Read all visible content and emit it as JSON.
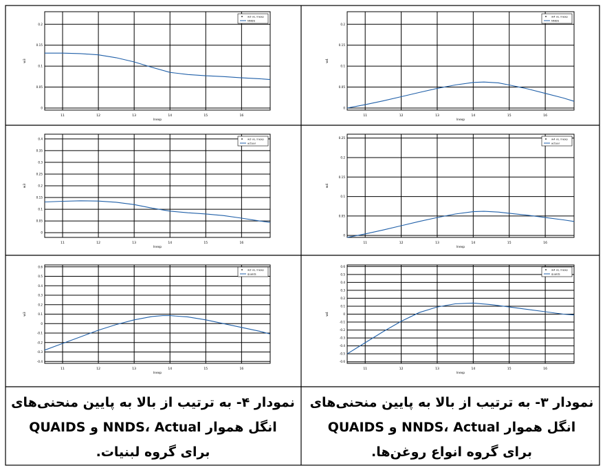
{
  "chart_data": [
    {
      "type": "line",
      "legend_entries": [
        "w3 vs. lnexp",
        "NNDS"
      ],
      "legend_position": "top-right",
      "xlabel": "lnexp",
      "ylabel": "w3",
      "xlim": [
        10.5,
        16.8
      ],
      "ylim": [
        -0.005,
        0.23
      ],
      "xticks": [
        11,
        12,
        13,
        14,
        15,
        16
      ],
      "yticks": [
        0,
        0.05,
        0.1,
        0.15,
        0.2
      ],
      "ytick_labels": [
        "0",
        "0.05",
        "0.1",
        "0.15",
        "0.2"
      ],
      "grid": true,
      "series": [
        {
          "name": "NNDS",
          "x": [
            10.5,
            11.0,
            11.5,
            12.0,
            12.5,
            13.0,
            13.5,
            14.0,
            14.5,
            15.0,
            15.5,
            16.0,
            16.5,
            16.8
          ],
          "y": [
            0.131,
            0.131,
            0.13,
            0.127,
            0.12,
            0.11,
            0.097,
            0.085,
            0.08,
            0.077,
            0.075,
            0.072,
            0.07,
            0.068
          ]
        }
      ]
    },
    {
      "type": "line",
      "legend_entries": [
        "w4 vs. lnexp",
        "NNDS"
      ],
      "legend_position": "top-right",
      "xlabel": "lnexp",
      "ylabel": "w4",
      "xlim": [
        10.5,
        16.8
      ],
      "ylim": [
        -0.005,
        0.23
      ],
      "xticks": [
        11,
        12,
        13,
        14,
        15,
        16
      ],
      "yticks": [
        0,
        0.05,
        0.1,
        0.15,
        0.2
      ],
      "ytick_labels": [
        "0",
        "0.05",
        "0.1",
        "0.15",
        "0.2"
      ],
      "grid": true,
      "series": [
        {
          "name": "NNDS",
          "x": [
            10.5,
            11.0,
            11.5,
            12.0,
            12.5,
            13.0,
            13.5,
            14.0,
            14.3,
            14.7,
            15.0,
            15.5,
            16.0,
            16.5,
            16.8
          ],
          "y": [
            0.0,
            0.008,
            0.017,
            0.027,
            0.037,
            0.047,
            0.055,
            0.061,
            0.062,
            0.06,
            0.055,
            0.046,
            0.035,
            0.024,
            0.016
          ]
        }
      ]
    },
    {
      "type": "line",
      "legend_entries": [
        "w3 vs. lnexp",
        "actual"
      ],
      "legend_position": "top-right",
      "xlabel": "lnexp",
      "ylabel": "w3",
      "xlim": [
        10.5,
        16.8
      ],
      "ylim": [
        -0.02,
        0.42
      ],
      "xticks": [
        11,
        12,
        13,
        14,
        15,
        16
      ],
      "yticks": [
        0,
        0.05,
        0.1,
        0.15,
        0.2,
        0.25,
        0.3,
        0.35,
        0.4
      ],
      "ytick_labels": [
        "0",
        "0.05",
        "0.1",
        "0.15",
        "0.2",
        "0.25",
        "0.3",
        "0.35",
        "0.4"
      ],
      "grid": true,
      "series": [
        {
          "name": "actual",
          "x": [
            10.5,
            11.0,
            11.5,
            12.0,
            12.5,
            13.0,
            13.5,
            14.0,
            14.5,
            15.0,
            15.5,
            16.0,
            16.5,
            16.8
          ],
          "y": [
            0.131,
            0.134,
            0.136,
            0.135,
            0.13,
            0.12,
            0.105,
            0.092,
            0.085,
            0.08,
            0.073,
            0.062,
            0.05,
            0.044
          ]
        }
      ]
    },
    {
      "type": "line",
      "legend_entries": [
        "w4 vs. lnexp",
        "actual"
      ],
      "legend_position": "top-right",
      "xlabel": "lnexp",
      "ylabel": "w4",
      "xlim": [
        10.5,
        16.8
      ],
      "ylim": [
        -0.005,
        0.26
      ],
      "xticks": [
        11,
        12,
        13,
        14,
        15,
        16
      ],
      "yticks": [
        0,
        0.05,
        0.1,
        0.15,
        0.2,
        0.25
      ],
      "ytick_labels": [
        "0",
        "0.05",
        "0.1",
        "0.15",
        "0.2",
        "0.25"
      ],
      "grid": true,
      "series": [
        {
          "name": "actual",
          "x": [
            10.5,
            11.0,
            11.5,
            12.0,
            12.5,
            13.0,
            13.5,
            14.0,
            14.3,
            14.7,
            15.0,
            15.5,
            16.0,
            16.5,
            16.8
          ],
          "y": [
            -0.005,
            0.004,
            0.014,
            0.025,
            0.036,
            0.046,
            0.055,
            0.061,
            0.062,
            0.06,
            0.057,
            0.052,
            0.046,
            0.04,
            0.036
          ]
        }
      ]
    },
    {
      "type": "line",
      "legend_entries": [
        "w3 vs. lnexp",
        "quaids"
      ],
      "legend_position": "top-right",
      "xlabel": "lnexp",
      "ylabel": "w3",
      "xlim": [
        10.5,
        16.8
      ],
      "ylim": [
        -0.42,
        0.62
      ],
      "xticks": [
        11,
        12,
        13,
        14,
        15,
        16
      ],
      "yticks": [
        -0.4,
        -0.3,
        -0.2,
        -0.1,
        0,
        0.1,
        0.2,
        0.3,
        0.4,
        0.5,
        0.6
      ],
      "ytick_labels": [
        "-0.4",
        "-0.3",
        "-0.2",
        "-0.1",
        "0",
        "0.1",
        "0.2",
        "0.3",
        "0.4",
        "0.5",
        "0.6"
      ],
      "grid": true,
      "series": [
        {
          "name": "quaids",
          "x": [
            10.5,
            11.0,
            11.5,
            12.0,
            12.5,
            13.0,
            13.5,
            13.8,
            14.0,
            14.5,
            15.0,
            15.5,
            16.0,
            16.5,
            16.8
          ],
          "y": [
            -0.28,
            -0.21,
            -0.14,
            -0.07,
            -0.01,
            0.04,
            0.075,
            0.085,
            0.085,
            0.07,
            0.04,
            0.0,
            -0.04,
            -0.08,
            -0.11
          ]
        }
      ]
    },
    {
      "type": "line",
      "legend_entries": [
        "w4 vs. lnexp",
        "quaids"
      ],
      "legend_position": "top-right",
      "xlabel": "lnexp",
      "ylabel": "w4",
      "xlim": [
        10.5,
        16.8
      ],
      "ylim": [
        -0.62,
        0.62
      ],
      "xticks": [
        11,
        12,
        13,
        14,
        15,
        16
      ],
      "yticks": [
        -0.6,
        -0.5,
        -0.4,
        -0.3,
        -0.2,
        -0.1,
        0,
        0.1,
        0.2,
        0.3,
        0.4,
        0.5,
        0.6
      ],
      "ytick_labels": [
        "-0.6",
        "-0.5",
        "-0.4",
        "-0.3",
        "-0.2",
        "-0.1",
        "0",
        "0.1",
        "0.2",
        "0.3",
        "0.4",
        "0.5",
        "0.6"
      ],
      "grid": true,
      "series": [
        {
          "name": "quaids",
          "x": [
            10.5,
            11.0,
            11.5,
            12.0,
            12.5,
            13.0,
            13.5,
            14.0,
            14.5,
            15.0,
            15.5,
            16.0,
            16.5,
            16.8
          ],
          "y": [
            -0.5,
            -0.36,
            -0.22,
            -0.09,
            0.02,
            0.09,
            0.13,
            0.14,
            0.12,
            0.09,
            0.06,
            0.03,
            0.0,
            -0.01
          ]
        }
      ]
    }
  ],
  "captions": {
    "left": [
      "نمودار ۴- به ترتیب از بالا به پایین منحنی‌های",
      "انگل هموار NNDS، Actual و QUAIDS",
      "برای گروه لبنیات."
    ],
    "right": [
      "نمودار ۳- به ترتیب از بالا به پایین منحنی‌های",
      "انگل هموار NNDS، Actual و QUAIDS",
      "برای گروه انواع روغن‌ها."
    ]
  },
  "colors": {
    "line": "#1f5fa8",
    "grid": "#000000"
  }
}
